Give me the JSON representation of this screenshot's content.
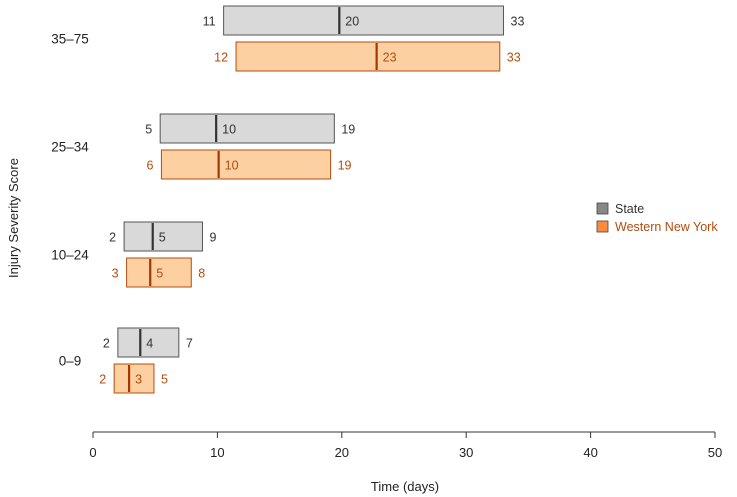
{
  "chart_data": {
    "type": "bar",
    "subtype": "floating-range-with-median",
    "xlabel": "Time (days)",
    "ylabel": "Injury Severity Score",
    "xlim": [
      0,
      50
    ],
    "xticks": [
      0,
      10,
      20,
      30,
      40,
      50
    ],
    "grid": false,
    "legend_position": "right",
    "categories": [
      "35–75",
      "25–34",
      "10–24",
      "0–9"
    ],
    "series": [
      {
        "name": "State",
        "fill": "#d9d9d9",
        "stroke": "#555555",
        "median_color": "#333333",
        "label_color": "#333333",
        "data": [
          {
            "low": 10.5,
            "median": 19.8,
            "high": 33,
            "low_label": "11",
            "median_label": "20",
            "high_label": "33"
          },
          {
            "low": 5.4,
            "median": 9.9,
            "high": 19.4,
            "low_label": "5",
            "median_label": "10",
            "high_label": "19"
          },
          {
            "low": 2.5,
            "median": 4.8,
            "high": 8.8,
            "low_label": "2",
            "median_label": "5",
            "high_label": "9"
          },
          {
            "low": 2.0,
            "median": 3.8,
            "high": 6.9,
            "low_label": "2",
            "median_label": "4",
            "high_label": "7"
          }
        ]
      },
      {
        "name": "Western New York",
        "fill": "#fdd0a2",
        "stroke": "#b34d10",
        "median_color": "#a63603",
        "label_color": "#b34d10",
        "data": [
          {
            "low": 11.5,
            "median": 22.8,
            "high": 32.7,
            "low_label": "12",
            "median_label": "23",
            "high_label": "33"
          },
          {
            "low": 5.5,
            "median": 10.1,
            "high": 19.1,
            "low_label": "6",
            "median_label": "10",
            "high_label": "19"
          },
          {
            "low": 2.7,
            "median": 4.6,
            "high": 7.9,
            "low_label": "3",
            "median_label": "5",
            "high_label": "8"
          },
          {
            "low": 1.7,
            "median": 2.9,
            "high": 4.9,
            "low_label": "2",
            "median_label": "3",
            "high_label": "5"
          }
        ]
      }
    ],
    "legend": [
      {
        "label": "State",
        "swatch": "#888888",
        "text_color": "#333333"
      },
      {
        "label": "Western New York",
        "swatch": "#fd8d3c",
        "text_color": "#b34d10"
      }
    ]
  }
}
